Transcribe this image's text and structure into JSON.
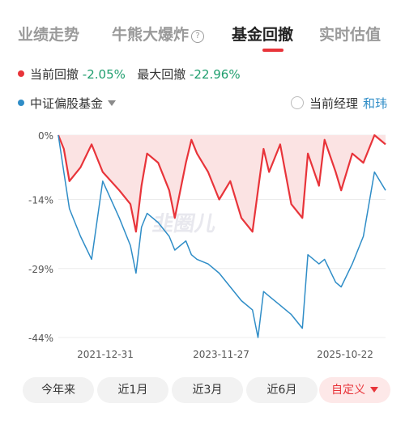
{
  "tabs": [
    {
      "label": "业绩走势"
    },
    {
      "label": "牛熊大爆炸"
    },
    {
      "label": "基金回撤"
    },
    {
      "label": "实时估值"
    }
  ],
  "legend": {
    "current_label": "当前回撤",
    "current_value": "-2.05%",
    "max_label": "最大回撤",
    "max_value": "-22.96%",
    "index_label": "中证偏股基金",
    "manager_label": "当前经理",
    "manager_name": "和玮"
  },
  "chart_data": {
    "type": "line",
    "y_ticks": [
      "0%",
      "-14%",
      "-29%",
      "-44%"
    ],
    "x_ticks": [
      "2021-12-31",
      "2023-11-27",
      "2025-10-22"
    ],
    "ylim": [
      -44,
      0
    ],
    "series": [
      {
        "name": "当前回撤",
        "color": "#e8343a",
        "fill": true,
        "x": [
          "2021-01",
          "2021-02",
          "2021-03",
          "2021-05",
          "2021-07",
          "2021-09",
          "2021-12",
          "2022-02",
          "2022-03",
          "2022-04",
          "2022-05",
          "2022-07",
          "2022-09",
          "2022-10",
          "2022-12",
          "2023-01",
          "2023-02",
          "2023-04",
          "2023-06",
          "2023-08",
          "2023-10",
          "2023-12",
          "2024-01",
          "2024-02",
          "2024-03",
          "2024-05",
          "2024-07",
          "2024-09",
          "2024-10",
          "2024-12",
          "2025-01",
          "2025-03",
          "2025-04",
          "2025-06",
          "2025-08",
          "2025-10",
          "2025-12"
        ],
        "values": [
          0,
          -3,
          -10,
          -7,
          -2,
          -8,
          -12,
          -15,
          -21,
          -11,
          -4,
          -6,
          -12,
          -18,
          -6,
          -1,
          -4,
          -8,
          -14,
          -10,
          -18,
          -21,
          -12,
          -3,
          -8,
          -2,
          -15,
          -18,
          -4,
          -11,
          -1,
          -8,
          -12,
          -4,
          -6,
          0,
          -2
        ]
      },
      {
        "name": "中证偏股基金",
        "color": "#2f8dc7",
        "fill": false,
        "x": [
          "2021-01",
          "2021-02",
          "2021-03",
          "2021-05",
          "2021-07",
          "2021-09",
          "2021-12",
          "2022-02",
          "2022-03",
          "2022-04",
          "2022-05",
          "2022-07",
          "2022-09",
          "2022-10",
          "2022-12",
          "2023-01",
          "2023-02",
          "2023-04",
          "2023-06",
          "2023-08",
          "2023-10",
          "2023-12",
          "2024-01",
          "2024-02",
          "2024-03",
          "2024-05",
          "2024-07",
          "2024-09",
          "2024-10",
          "2024-12",
          "2025-01",
          "2025-03",
          "2025-04",
          "2025-06",
          "2025-08",
          "2025-10",
          "2025-12"
        ],
        "values": [
          0,
          -8,
          -16,
          -22,
          -27,
          -10,
          -18,
          -24,
          -30,
          -20,
          -17,
          -19,
          -22,
          -25,
          -23,
          -26,
          -27,
          -28,
          -30,
          -33,
          -36,
          -38,
          -44,
          -34,
          -35,
          -37,
          -39,
          -42,
          -26,
          -28,
          -27,
          -32,
          -33,
          -28,
          -22,
          -8,
          -12
        ]
      }
    ]
  },
  "ranges": [
    {
      "label": "今年来"
    },
    {
      "label": "近1月"
    },
    {
      "label": "近3月"
    },
    {
      "label": "近6月"
    },
    {
      "label": "自定义"
    }
  ],
  "watermark": "韭圈儿"
}
